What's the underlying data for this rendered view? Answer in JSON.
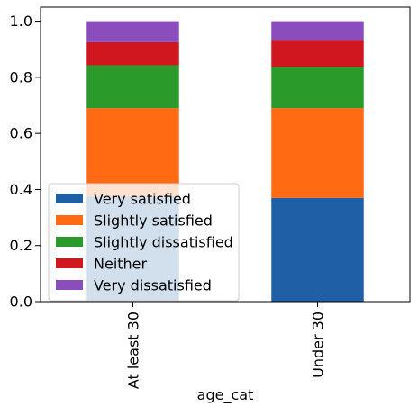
{
  "chart_data": {
    "type": "bar",
    "stacked": true,
    "categories": [
      "At least 30",
      "Under 30"
    ],
    "series": [
      {
        "name": "Very satisfied",
        "color": "#1f5fa6",
        "values": [
          0.375,
          0.37
        ]
      },
      {
        "name": "Slightly satisfied",
        "color": "#ff6a13",
        "values": [
          0.315,
          0.32
        ]
      },
      {
        "name": "Slightly dissatisfied",
        "color": "#2a9a2a",
        "values": [
          0.153,
          0.148
        ]
      },
      {
        "name": "Neither",
        "color": "#d0161e",
        "values": [
          0.082,
          0.095
        ]
      },
      {
        "name": "Very dissatisfied",
        "color": "#8a4dbb",
        "values": [
          0.075,
          0.067
        ]
      }
    ],
    "xlabel": "age_cat",
    "ylabel": "",
    "ylim": [
      0,
      1.05
    ],
    "yticks": [
      "0.0",
      "0.2",
      "0.4",
      "0.6",
      "0.8",
      "1.0"
    ],
    "grid": false,
    "legend_position": "lower-left"
  }
}
